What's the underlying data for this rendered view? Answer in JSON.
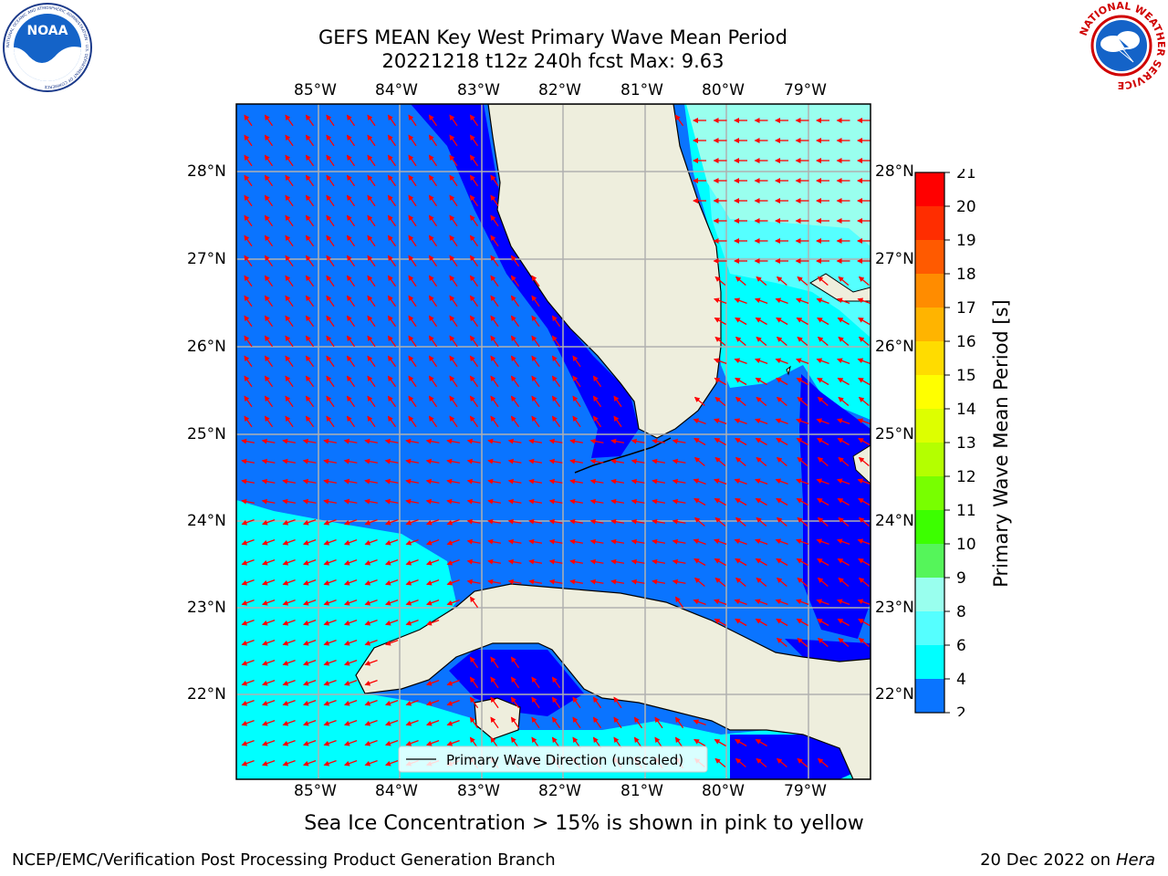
{
  "header": {
    "title_line1": "GEFS MEAN Key West Primary Wave Mean Period",
    "title_line2": "20221218 t12z 240h fcst   Max: 9.63"
  },
  "logos": {
    "left": {
      "name": "NOAA",
      "ring_text": "NATIONAL OCEANIC AND ATMOSPHERIC ADMINISTRATION · U.S. DEPARTMENT OF COMMERCE"
    },
    "right": {
      "ring_text": "NATIONAL WEATHER SERVICE"
    }
  },
  "map": {
    "lon_labels": [
      "85°W",
      "84°W",
      "83°W",
      "82°W",
      "81°W",
      "80°W",
      "79°W"
    ],
    "lat_labels": [
      "28°N",
      "27°N",
      "26°N",
      "25°N",
      "24°N",
      "23°N",
      "22°N"
    ],
    "legend_label": "Primary Wave Direction (unscaled)",
    "colors": {
      "land": "#eeeedd",
      "band_2_4": "#0000ff",
      "band_4_6": "#0a74ff",
      "band_6_8": "#00ffff",
      "band_8_9": "#55ffff",
      "band_9_10": "#99ffee",
      "arrow": "#ff0000"
    }
  },
  "colorbar": {
    "label": "Primary Wave Mean Period [s]",
    "ticks": [
      "21",
      "20",
      "19",
      "18",
      "17",
      "16",
      "15",
      "14",
      "13",
      "12",
      "11",
      "10",
      "9",
      "8",
      "6",
      "4",
      "2"
    ],
    "colors": [
      "#ff0000",
      "#ff2d00",
      "#ff5a00",
      "#ff8c00",
      "#ffb400",
      "#ffdc00",
      "#ffff00",
      "#ddff00",
      "#b4ff00",
      "#78ff00",
      "#3cff00",
      "#55f55a",
      "#99ffee",
      "#55ffff",
      "#00ffff",
      "#0a74ff",
      "#0000ff"
    ]
  },
  "subtitle": "Sea Ice Concentration > 15% is shown in pink to yellow",
  "footer": {
    "left": "NCEP/EMC/Verification Post Processing Product Generation Branch",
    "right_date": "20 Dec 2022 on",
    "right_host": "Hera"
  }
}
